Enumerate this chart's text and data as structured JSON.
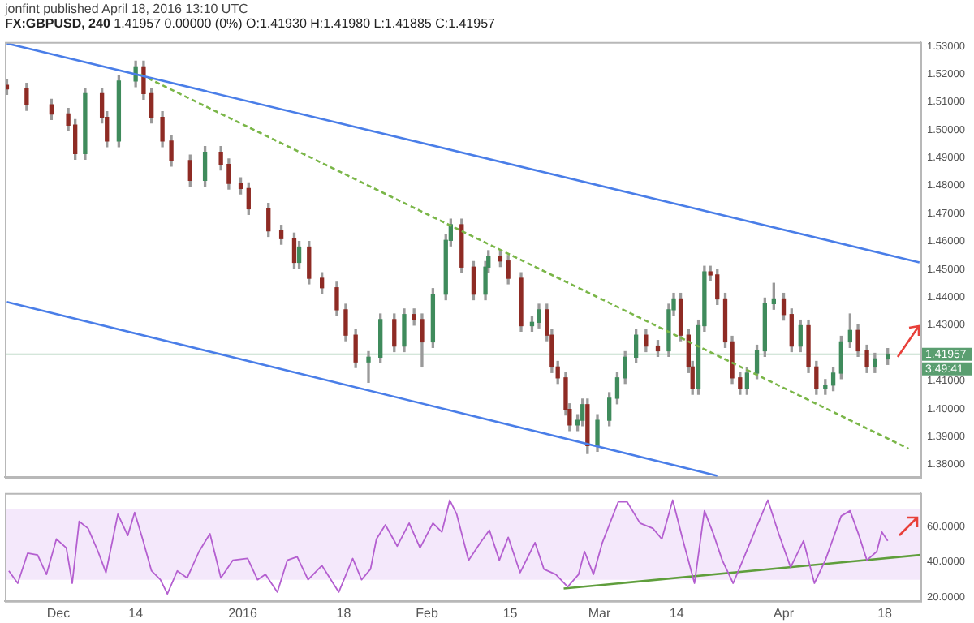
{
  "chart_data": [
    {
      "type": "candlestick",
      "title": "FX:GBPUSD, 240",
      "subtitle": "1.41957 0.00000 (0%) O:1.41930 H:1.41980 L:1.41885 C:1.41957",
      "annotations": [
        "jonfint published April 18, 2016 13:10 UTC",
        "3:49:41"
      ],
      "x": [
        "2015-11-22T08:00",
        "2015-11-25T16:00",
        "2015-11-29T20:00",
        "2015-12-02T16:00",
        "2015-12-03T20:00",
        "2015-12-05T12:00",
        "2015-12-08T08:00",
        "2015-12-09T04:00",
        "2015-12-11T04:00",
        "2015-12-14T00:00",
        "2015-12-15T08:00",
        "2015-12-16T16:00",
        "2015-12-18T12:00",
        "2015-12-20T00:00",
        "2015-12-23T04:00",
        "2015-12-25T16:00",
        "2015-12-28T08:00",
        "2015-12-29T16:00",
        "2015-12-31T16:00",
        "2016-01-02T00:00",
        "2016-01-05T08:00",
        "2016-01-07T12:00",
        "2016-01-09T16:00",
        "2016-01-10T12:00",
        "2016-01-12T04:00",
        "2016-01-14T08:00",
        "2016-01-16T20:00",
        "2016-01-18T08:00",
        "2016-01-20T00:00",
        "2016-01-22T04:00",
        "2016-01-24T04:00",
        "2016-01-26T12:00",
        "2016-01-28T04:00",
        "2016-01-29T20:00",
        "2016-01-31T04:00",
        "2016-02-02T00:00",
        "2016-02-04T04:00",
        "2016-02-05T00:00",
        "2016-02-06T20:00",
        "2016-02-08T20:00",
        "2016-02-10T20:00",
        "2016-02-11T08:00",
        "2016-02-13T08:00",
        "2016-02-14T16:00",
        "2016-02-16T20:00",
        "2016-02-18T16:00",
        "2016-02-19T20:00",
        "2016-02-21T04:00",
        "2016-02-22T00:00",
        "2016-02-23T00:00",
        "2016-02-24T08:00",
        "2016-02-25T00:00",
        "2016-02-26T08:00",
        "2016-02-27T04:00",
        "2016-02-28T00:00",
        "2016-02-29T16:00",
        "2016-03-02T16:00",
        "2016-03-04T00:00",
        "2016-03-05T08:00",
        "2016-03-07T04:00",
        "2016-03-08T20:00",
        "2016-03-10T20:00",
        "2016-03-12T16:00",
        "2016-03-13T12:00",
        "2016-03-14T16:00",
        "2016-03-16T00:00",
        "2016-03-16T16:00",
        "2016-03-17T16:00",
        "2016-03-18T16:00",
        "2016-03-19T16:00",
        "2016-03-20T20:00",
        "2016-03-22T04:00",
        "2016-03-23T08:00",
        "2016-03-24T16:00",
        "2016-03-25T20:00",
        "2016-03-27T12:00",
        "2016-03-28T20:00",
        "2016-03-30T08:00",
        "2016-04-01T00:00",
        "2016-04-02T08:00",
        "2016-04-03T20:00",
        "2016-04-05T04:00",
        "2016-04-06T12:00",
        "2016-04-08T00:00",
        "2016-04-09T08:00",
        "2016-04-10T16:00",
        "2016-04-12T04:00",
        "2016-04-13T12:00",
        "2016-04-15T00:00",
        "2016-04-16T08:00",
        "2016-04-18T12:00"
      ],
      "ohlc": [
        [
          1.516,
          1.518,
          1.5127,
          1.5147
        ],
        [
          1.5147,
          1.5167,
          1.507,
          1.509
        ],
        [
          1.509,
          1.511,
          1.5037,
          1.5057
        ],
        [
          1.5057,
          1.5077,
          1.4997,
          1.5017
        ],
        [
          1.5017,
          1.5037,
          1.4895,
          1.4915
        ],
        [
          1.4915,
          1.515,
          1.4895,
          1.513
        ],
        [
          1.513,
          1.515,
          1.5025,
          1.5045
        ],
        [
          1.5045,
          1.5065,
          1.494,
          1.496
        ],
        [
          1.496,
          1.5195,
          1.494,
          1.5175
        ],
        [
          1.5175,
          1.5246,
          1.5155,
          1.5226
        ],
        [
          1.5226,
          1.5246,
          1.511,
          1.513
        ],
        [
          1.513,
          1.515,
          1.5025,
          1.5045
        ],
        [
          1.5045,
          1.5065,
          1.494,
          1.496
        ],
        [
          1.496,
          1.498,
          1.487,
          1.489
        ],
        [
          1.489,
          1.491,
          1.4799,
          1.4819
        ],
        [
          1.4819,
          1.494,
          1.4799,
          1.492
        ],
        [
          1.492,
          1.494,
          1.4856,
          1.4876
        ],
        [
          1.4876,
          1.4896,
          1.4788,
          1.4808
        ],
        [
          1.4808,
          1.4828,
          1.477,
          1.479
        ],
        [
          1.479,
          1.481,
          1.4697,
          1.4717
        ],
        [
          1.4717,
          1.4737,
          1.4618,
          1.4638
        ],
        [
          1.4638,
          1.4658,
          1.459,
          1.461
        ],
        [
          1.461,
          1.463,
          1.4505,
          1.4525
        ],
        [
          1.4525,
          1.46,
          1.4505,
          1.458
        ],
        [
          1.458,
          1.46,
          1.4448,
          1.4468
        ],
        [
          1.4468,
          1.4488,
          1.4414,
          1.4434
        ],
        [
          1.4434,
          1.4454,
          1.4335,
          1.4355
        ],
        [
          1.4355,
          1.4375,
          1.4244,
          1.4264
        ],
        [
          1.4264,
          1.4284,
          1.4148,
          1.4168
        ],
        [
          1.4168,
          1.4205,
          1.4095,
          1.4185
        ],
        [
          1.4185,
          1.434,
          1.4165,
          1.432
        ],
        [
          1.432,
          1.434,
          1.4205,
          1.4225
        ],
        [
          1.4225,
          1.4358,
          1.4205,
          1.4338
        ],
        [
          1.4338,
          1.4358,
          1.43,
          1.432
        ],
        [
          1.432,
          1.434,
          1.415,
          1.424
        ],
        [
          1.424,
          1.4431,
          1.422,
          1.4411
        ],
        [
          1.4411,
          1.4624,
          1.4391,
          1.4604
        ],
        [
          1.4604,
          1.468,
          1.4584,
          1.466
        ],
        [
          1.466,
          1.468,
          1.4488,
          1.4508
        ],
        [
          1.4508,
          1.4528,
          1.4391,
          1.4411
        ],
        [
          1.4411,
          1.4528,
          1.4391,
          1.4508
        ],
        [
          1.4508,
          1.4567,
          1.4488,
          1.4547
        ],
        [
          1.4547,
          1.4567,
          1.451,
          1.453
        ],
        [
          1.453,
          1.455,
          1.4448,
          1.4468
        ],
        [
          1.4468,
          1.4488,
          1.4278,
          1.4298
        ],
        [
          1.4298,
          1.433,
          1.4278,
          1.431
        ],
        [
          1.431,
          1.4375,
          1.429,
          1.4355
        ],
        [
          1.4355,
          1.4375,
          1.4244,
          1.4264
        ],
        [
          1.4264,
          1.4284,
          1.413,
          1.415
        ],
        [
          1.415,
          1.417,
          1.4091,
          1.4111
        ],
        [
          1.4111,
          1.4131,
          1.3978,
          1.3998
        ],
        [
          1.3998,
          1.4018,
          1.3922,
          1.3942
        ],
        [
          1.3942,
          1.3979,
          1.3922,
          1.3959
        ],
        [
          1.3959,
          1.4035,
          1.3939,
          1.4015
        ],
        [
          1.4015,
          1.4035,
          1.384,
          1.3868
        ],
        [
          1.3868,
          1.3979,
          1.3848,
          1.3959
        ],
        [
          1.3959,
          1.4058,
          1.3939,
          1.4038
        ],
        [
          1.4038,
          1.4131,
          1.4018,
          1.4111
        ],
        [
          1.4111,
          1.4205,
          1.4091,
          1.4185
        ],
        [
          1.4185,
          1.4284,
          1.4165,
          1.4264
        ],
        [
          1.4264,
          1.4284,
          1.4205,
          1.4225
        ],
        [
          1.4225,
          1.4245,
          1.4188,
          1.4208
        ],
        [
          1.4208,
          1.4375,
          1.4188,
          1.4355
        ],
        [
          1.4355,
          1.4414,
          1.4335,
          1.4394
        ],
        [
          1.4394,
          1.4414,
          1.4244,
          1.4264
        ],
        [
          1.4264,
          1.4284,
          1.413,
          1.415
        ],
        [
          1.415,
          1.417,
          1.4052,
          1.4072
        ],
        [
          1.4072,
          1.4318,
          1.4052,
          1.4298
        ],
        [
          1.4298,
          1.4511,
          1.4278,
          1.4491
        ],
        [
          1.4491,
          1.4511,
          1.446,
          1.448
        ],
        [
          1.448,
          1.45,
          1.4374,
          1.4394
        ],
        [
          1.4394,
          1.4414,
          1.422,
          1.424
        ],
        [
          1.424,
          1.426,
          1.4091,
          1.4111
        ],
        [
          1.4111,
          1.4131,
          1.4052,
          1.4072
        ],
        [
          1.4072,
          1.4148,
          1.4052,
          1.4128
        ],
        [
          1.4128,
          1.4228,
          1.4108,
          1.4208
        ],
        [
          1.4208,
          1.4397,
          1.4188,
          1.4377
        ],
        [
          1.4377,
          1.445,
          1.4357,
          1.4394
        ],
        [
          1.4394,
          1.4414,
          1.4318,
          1.4338
        ],
        [
          1.4338,
          1.4358,
          1.4205,
          1.4225
        ],
        [
          1.4225,
          1.4318,
          1.4205,
          1.4298
        ],
        [
          1.4298,
          1.4318,
          1.413,
          1.415
        ],
        [
          1.415,
          1.417,
          1.4052,
          1.4072
        ],
        [
          1.4072,
          1.4105,
          1.4052,
          1.4085
        ],
        [
          1.4085,
          1.4148,
          1.4065,
          1.4128
        ],
        [
          1.4128,
          1.426,
          1.4108,
          1.424
        ],
        [
          1.424,
          1.434,
          1.422,
          1.4281
        ],
        [
          1.4281,
          1.4301,
          1.4188,
          1.4208
        ],
        [
          1.4208,
          1.4228,
          1.413,
          1.415
        ],
        [
          1.415,
          1.4199,
          1.413,
          1.4179
        ],
        [
          1.4179,
          1.4216,
          1.4159,
          1.4196
        ]
      ],
      "colors": [
        "#8e2b24",
        "#8e2b24",
        "#8e2b24",
        "#8e2b24",
        "#8e2b24",
        "#3f8b5c",
        "#8e2b24",
        "#8e2b24",
        "#3f8b5c",
        "#3f8b5c",
        "#8e2b24",
        "#8e2b24",
        "#8e2b24",
        "#8e2b24",
        "#8e2b24",
        "#3f8b5c",
        "#8e2b24",
        "#8e2b24",
        "#8e2b24",
        "#8e2b24",
        "#8e2b24",
        "#8e2b24",
        "#8e2b24",
        "#3f8b5c",
        "#8e2b24",
        "#8e2b24",
        "#8e2b24",
        "#8e2b24",
        "#8e2b24",
        "#3f8b5c",
        "#3f8b5c",
        "#8e2b24",
        "#3f8b5c",
        "#8e2b24",
        "#8e2b24",
        "#3f8b5c",
        "#3f8b5c",
        "#3f8b5c",
        "#8e2b24",
        "#8e2b24",
        "#3f8b5c",
        "#3f8b5c",
        "#8e2b24",
        "#8e2b24",
        "#8e2b24",
        "#3f8b5c",
        "#3f8b5c",
        "#8e2b24",
        "#8e2b24",
        "#8e2b24",
        "#8e2b24",
        "#8e2b24",
        "#3f8b5c",
        "#3f8b5c",
        "#8e2b24",
        "#3f8b5c",
        "#3f8b5c",
        "#3f8b5c",
        "#3f8b5c",
        "#3f8b5c",
        "#8e2b24",
        "#8e2b24",
        "#3f8b5c",
        "#3f8b5c",
        "#8e2b24",
        "#8e2b24",
        "#8e2b24",
        "#3f8b5c",
        "#3f8b5c",
        "#8e2b24",
        "#8e2b24",
        "#8e2b24",
        "#8e2b24",
        "#8e2b24",
        "#3f8b5c",
        "#3f8b5c",
        "#3f8b5c",
        "#3f8b5c",
        "#8e2b24",
        "#8e2b24",
        "#3f8b5c",
        "#8e2b24",
        "#8e2b24",
        "#3f8b5c",
        "#3f8b5c",
        "#3f8b5c",
        "#3f8b5c",
        "#8e2b24",
        "#8e2b24",
        "#3f8b5c",
        "#3f8b5c"
      ],
      "series": [
        {
          "type": "line",
          "x": [
            "2015-11-22T08:00",
            "2016-04-23T20:00"
          ],
          "values": [
            1.531,
            1.4525
          ],
          "color": "#4a7ee8"
        },
        {
          "type": "line",
          "x": [
            "2015-11-22T08:00",
            "2016-03-20T20:00"
          ],
          "values": [
            1.4383,
            1.376
          ],
          "color": "#4a7ee8"
        },
        {
          "type": "line",
          "x": [
            "2015-12-14T20:00",
            "2016-04-22T00:00"
          ],
          "values": [
            1.5198,
            1.3857
          ],
          "color": "#7ab648",
          "line_style": "dashed"
        }
      ],
      "ref_lines": [
        {
          "axis": "y",
          "value": 1.41957,
          "label": "1.41957",
          "color": "#5a9e70"
        }
      ],
      "xlim": [
        "2015-11-22",
        "2016-04-24"
      ],
      "ylim": [
        1.3755,
        1.5315
      ],
      "yticks": [
        {
          "value": 1.38,
          "label": "1.38000"
        },
        {
          "value": 1.39,
          "label": "1.39000"
        },
        {
          "value": 1.4,
          "label": "1.40000"
        },
        {
          "value": 1.41,
          "label": "1.41000"
        },
        {
          "value": 1.43,
          "label": "1.43000"
        },
        {
          "value": 1.44,
          "label": "1.44000"
        },
        {
          "value": 1.45,
          "label": "1.45000"
        },
        {
          "value": 1.46,
          "label": "1.46000"
        },
        {
          "value": 1.47,
          "label": "1.47000"
        },
        {
          "value": 1.48,
          "label": "1.48000"
        },
        {
          "value": 1.49,
          "label": "1.49000"
        },
        {
          "value": 1.5,
          "label": "1.50000"
        },
        {
          "value": 1.51,
          "label": "1.51000"
        },
        {
          "value": 1.52,
          "label": "1.52000"
        },
        {
          "value": 1.53,
          "label": "1.53000"
        }
      ],
      "tick_labels": "y"
    },
    {
      "type": "line",
      "x": [
        "2015-11-22T16:00",
        "2015-11-24T04:00",
        "2015-11-25T20:00",
        "2015-11-27T12:00",
        "2015-11-29T00:00",
        "2015-11-30T16:00",
        "2015-12-02T08:00",
        "2015-12-03T08:00",
        "2015-12-04T12:00",
        "2015-12-06T00:00",
        "2015-12-07T16:00",
        "2015-12-09T00:00",
        "2015-12-11T00:00",
        "2015-12-12T16:00",
        "2015-12-13T20:00",
        "2015-12-15T04:00",
        "2015-12-16T16:00",
        "2015-12-18T04:00",
        "2015-12-19T08:00",
        "2015-12-21T00:00",
        "2015-12-22T16:00",
        "2015-12-24T16:00",
        "2015-12-26T12:00",
        "2015-12-28T08:00",
        "2015-12-30T08:00",
        "2016-01-01T20:00",
        "2016-01-03T12:00",
        "2016-01-04T20:00",
        "2016-01-06T20:00",
        "2016-01-08T12:00",
        "2016-01-10T04:00",
        "2016-01-12T00:00",
        "2016-01-14T08:00",
        "2016-01-17T04:00",
        "2016-01-19T12:00",
        "2016-01-21T00:00",
        "2016-01-22T12:00",
        "2016-01-23T12:00",
        "2016-01-25T00:00",
        "2016-01-27T00:00",
        "2016-01-29T00:00",
        "2016-01-30T20:00",
        "2016-02-02T00:00",
        "2016-02-03T12:00",
        "2016-02-04T20:00",
        "2016-02-06T00:00",
        "2016-02-08T00:00",
        "2016-02-10T00:00",
        "2016-02-11T12:00",
        "2016-02-13T04:00",
        "2016-02-14T16:00",
        "2016-02-16T16:00",
        "2016-02-19T04:00",
        "2016-02-20T16:00",
        "2016-02-22T16:00",
        "2016-02-24T16:00",
        "2016-02-26T12:00",
        "2016-02-27T12:00",
        "2016-02-29T00:00",
        "2016-03-01T12:00",
        "2016-03-04T04:00",
        "2016-03-05T16:00",
        "2016-03-07T20:00",
        "2016-03-10T00:00",
        "2016-03-11T12:00",
        "2016-03-13T08:00",
        "2016-03-15T00:00",
        "2016-03-17T00:00",
        "2016-03-18T16:00",
        "2016-03-20T04:00",
        "2016-03-21T16:00",
        "2016-03-23T12:00",
        "2016-03-25T00:00",
        "2016-03-27T08:00",
        "2016-03-29T08:00",
        "2016-03-31T04:00",
        "2016-04-02T04:00",
        "2016-04-04T08:00",
        "2016-04-06T04:00",
        "2016-04-08T00:00",
        "2016-04-10T16:00",
        "2016-04-12T04:00",
        "2016-04-13T16:00",
        "2016-04-15T00:00",
        "2016-04-16T16:00",
        "2016-04-17T12:00",
        "2016-04-18T12:00"
      ],
      "series": [
        {
          "color": "#b45fd0",
          "values": [
            35,
            28,
            45,
            44,
            33,
            53,
            48,
            28,
            63,
            59,
            46,
            34,
            67,
            55,
            68,
            53,
            35,
            30,
            22,
            35,
            31,
            46,
            56,
            31,
            41,
            42,
            30,
            33,
            23,
            41,
            43,
            30,
            38,
            23,
            42,
            30,
            36,
            53,
            61,
            49,
            62,
            48,
            62,
            57,
            75,
            67,
            41,
            51,
            58,
            41,
            54,
            34,
            51,
            36,
            33,
            26,
            33,
            46,
            33,
            51,
            74,
            74,
            62,
            59,
            53,
            75,
            53,
            28,
            69,
            56,
            41,
            28,
            40,
            59,
            75,
            56,
            37,
            52,
            28,
            41,
            66,
            69,
            55,
            41,
            46,
            57,
            52
          ]
        },
        {
          "type": "line",
          "x": [
            "2016-02-24T00:00",
            "2016-04-24T00:00"
          ],
          "values": [
            25,
            44
          ],
          "color": "#5f9e3c"
        }
      ],
      "bands": [
        {
          "axis": "y",
          "from": 30,
          "to": 70,
          "color": "#f4e8fb"
        }
      ],
      "xlim": [
        "2015-11-22",
        "2016-04-24"
      ],
      "xticks": [
        {
          "value": "2015-12-01",
          "label": "Dec"
        },
        {
          "value": "2015-12-14",
          "label": "14"
        },
        {
          "value": "2016-01-01",
          "label": "2016"
        },
        {
          "value": "2016-01-18",
          "label": "18"
        },
        {
          "value": "2016-02-01",
          "label": "Feb"
        },
        {
          "value": "2016-02-15",
          "label": "15"
        },
        {
          "value": "2016-03-01",
          "label": "Mar"
        },
        {
          "value": "2016-03-14",
          "label": "14"
        },
        {
          "value": "2016-04-01",
          "label": "Apr"
        },
        {
          "value": "2016-04-18",
          "label": "18"
        }
      ],
      "ylim": [
        18,
        79
      ],
      "yticks": [
        {
          "value": 20,
          "label": "20.0000"
        },
        {
          "value": 40,
          "label": "40.0000"
        },
        {
          "value": 60,
          "label": "60.0000"
        }
      ]
    }
  ]
}
